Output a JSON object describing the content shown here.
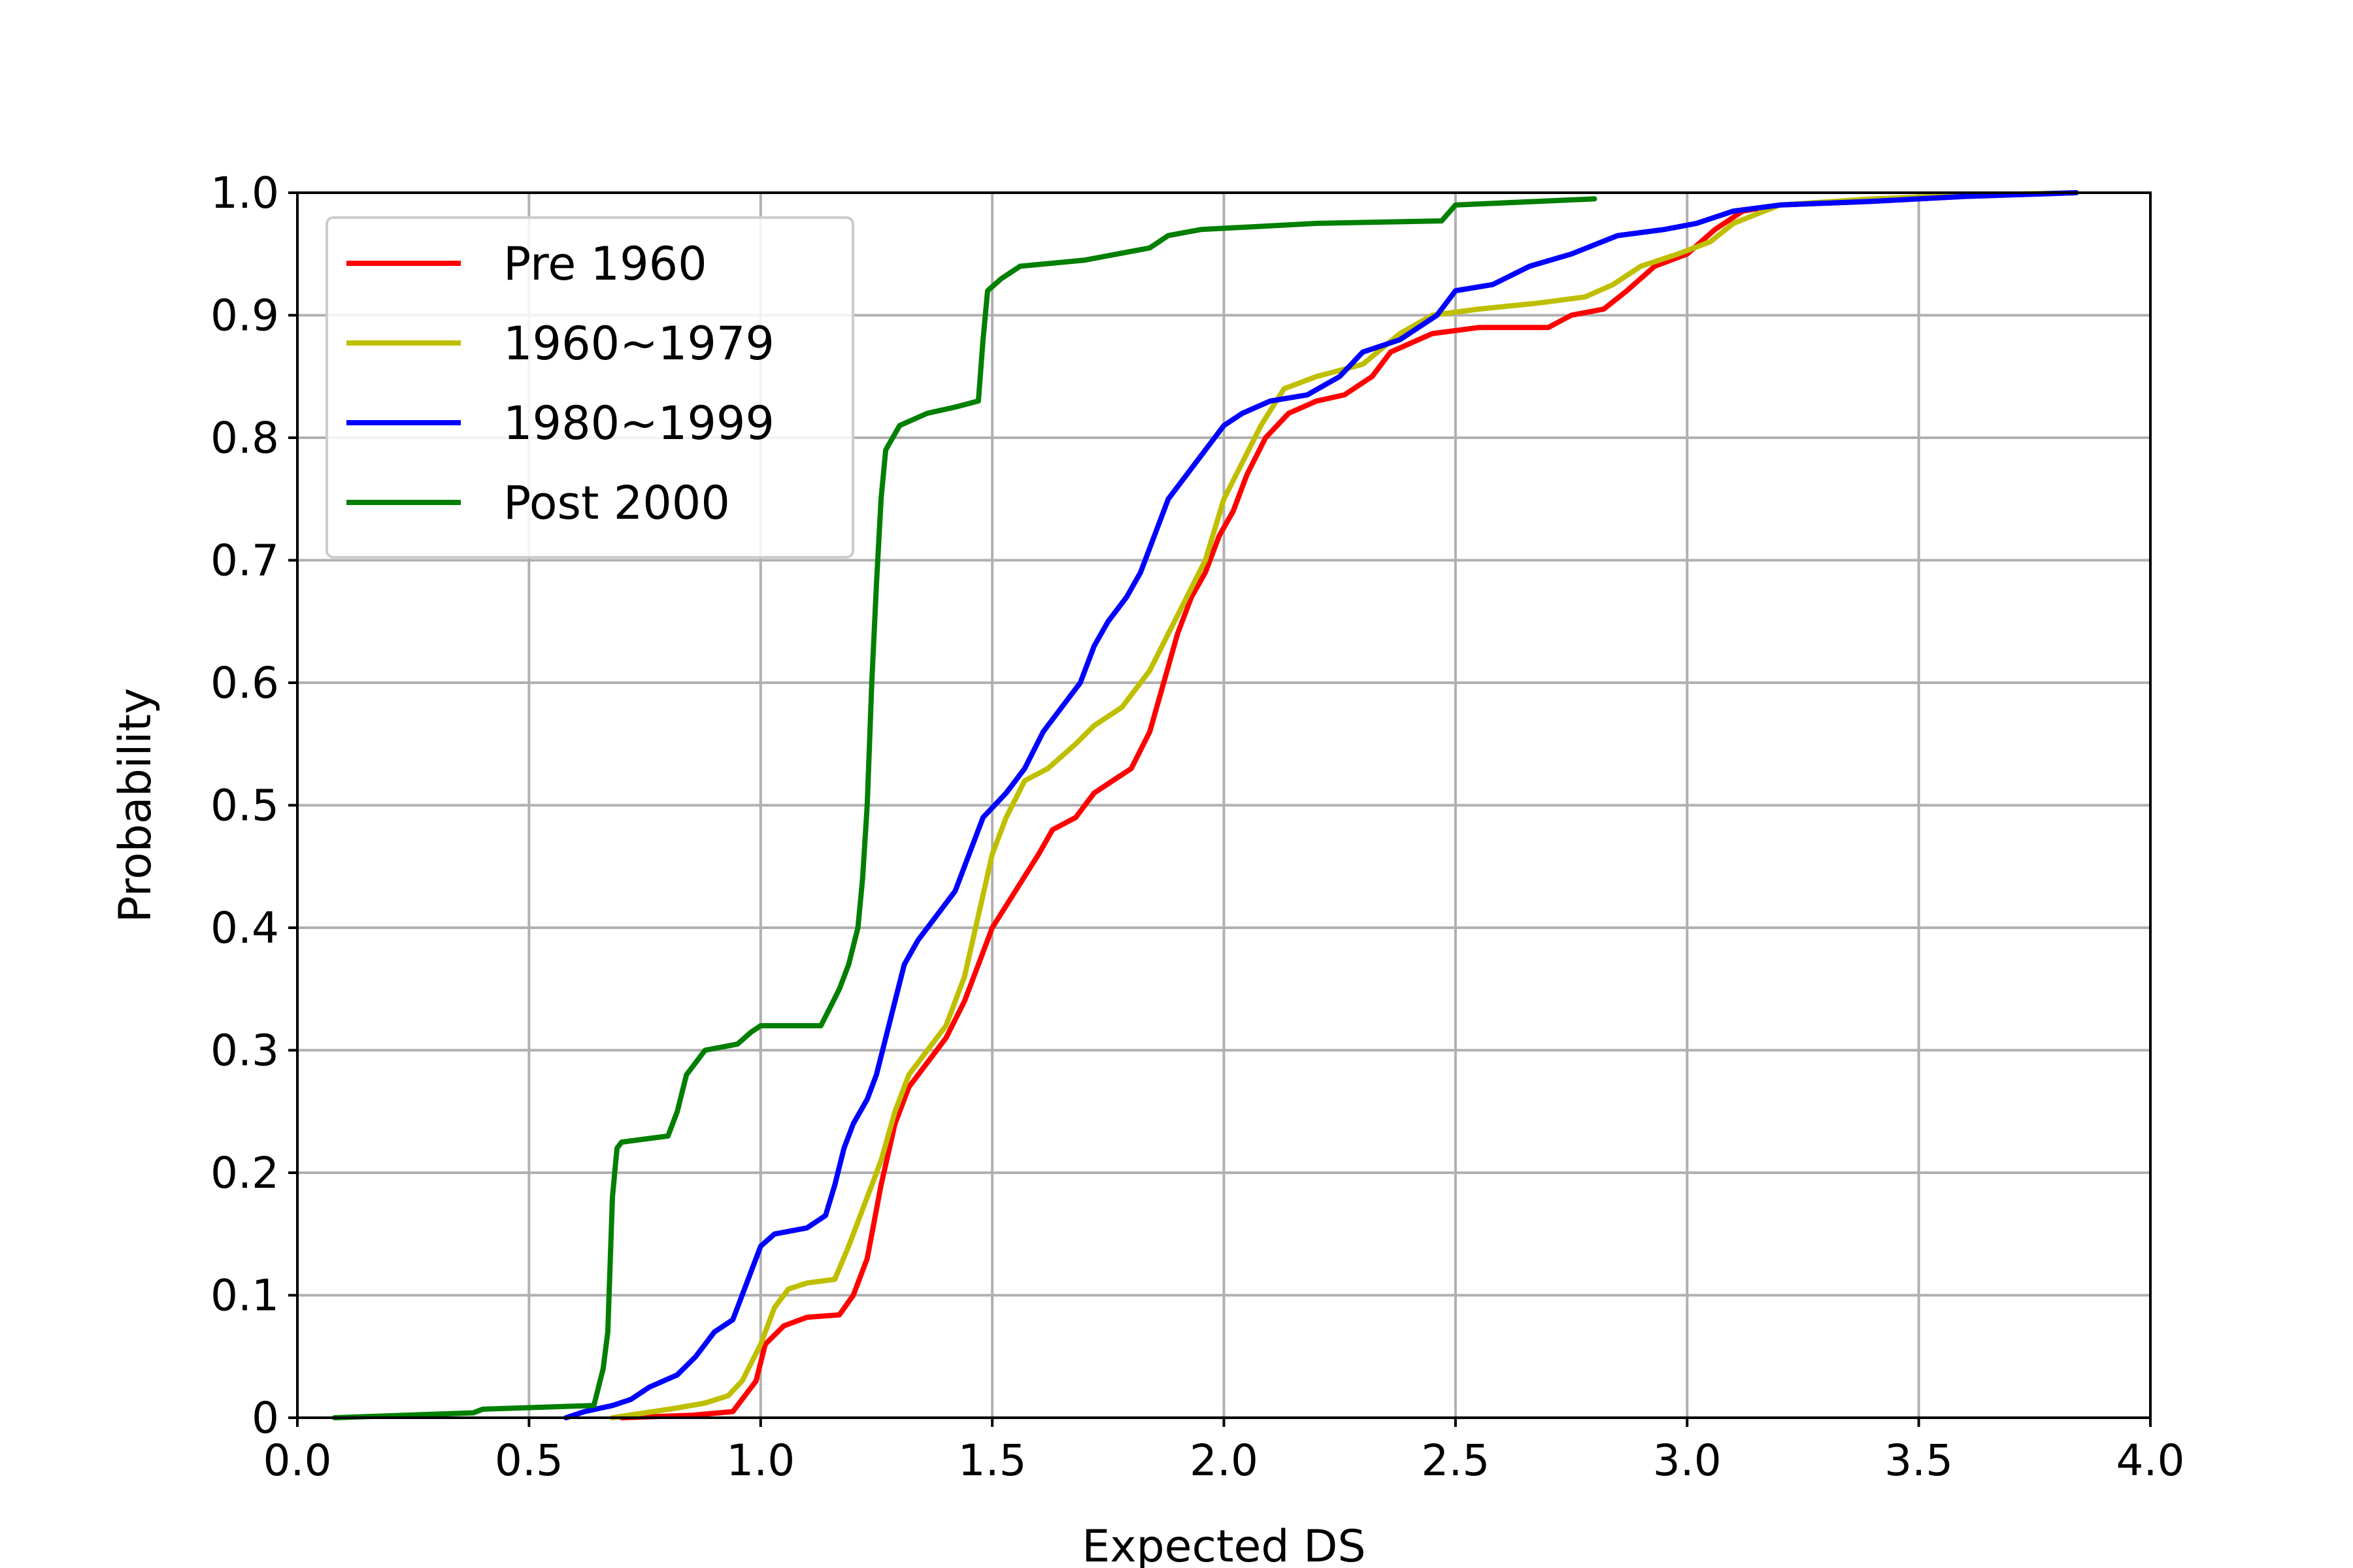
{
  "chart_data": {
    "type": "line",
    "xlabel": "Expected DS",
    "ylabel": "Probability",
    "xlim": [
      0.0,
      4.0
    ],
    "ylim": [
      0.0,
      1.0
    ],
    "x_ticks": [
      "0.0",
      "0.5",
      "1.0",
      "1.5",
      "2.0",
      "2.5",
      "3.0",
      "3.5",
      "4.0"
    ],
    "y_ticks": [
      "0",
      "0.1",
      "0.2",
      "0.3",
      "0.4",
      "0.5",
      "0.6",
      "0.7",
      "0.8",
      "0.9",
      "1.0"
    ],
    "grid": true,
    "legend_position": "top-left",
    "series": [
      {
        "name": "Pre 1960",
        "color": "#ff0000",
        "points": [
          [
            0.7,
            0.0
          ],
          [
            0.85,
            0.002
          ],
          [
            0.94,
            0.005
          ],
          [
            0.97,
            0.02
          ],
          [
            0.99,
            0.03
          ],
          [
            1.01,
            0.06
          ],
          [
            1.05,
            0.075
          ],
          [
            1.1,
            0.082
          ],
          [
            1.17,
            0.084
          ],
          [
            1.2,
            0.1
          ],
          [
            1.23,
            0.13
          ],
          [
            1.26,
            0.19
          ],
          [
            1.29,
            0.24
          ],
          [
            1.32,
            0.27
          ],
          [
            1.36,
            0.29
          ],
          [
            1.4,
            0.31
          ],
          [
            1.44,
            0.34
          ],
          [
            1.47,
            0.37
          ],
          [
            1.5,
            0.4
          ],
          [
            1.55,
            0.43
          ],
          [
            1.6,
            0.46
          ],
          [
            1.63,
            0.48
          ],
          [
            1.68,
            0.49
          ],
          [
            1.72,
            0.51
          ],
          [
            1.76,
            0.52
          ],
          [
            1.8,
            0.53
          ],
          [
            1.84,
            0.56
          ],
          [
            1.87,
            0.6
          ],
          [
            1.9,
            0.64
          ],
          [
            1.93,
            0.67
          ],
          [
            1.96,
            0.69
          ],
          [
            1.99,
            0.72
          ],
          [
            2.02,
            0.74
          ],
          [
            2.05,
            0.77
          ],
          [
            2.09,
            0.8
          ],
          [
            2.14,
            0.82
          ],
          [
            2.2,
            0.83
          ],
          [
            2.26,
            0.835
          ],
          [
            2.32,
            0.85
          ],
          [
            2.36,
            0.87
          ],
          [
            2.45,
            0.885
          ],
          [
            2.55,
            0.89
          ],
          [
            2.7,
            0.89
          ],
          [
            2.75,
            0.9
          ],
          [
            2.82,
            0.905
          ],
          [
            2.87,
            0.92
          ],
          [
            2.93,
            0.94
          ],
          [
            3.0,
            0.95
          ],
          [
            3.06,
            0.97
          ],
          [
            3.12,
            0.985
          ],
          [
            3.2,
            0.99
          ],
          [
            3.4,
            0.993
          ],
          [
            3.6,
            0.997
          ],
          [
            3.84,
            1.0
          ]
        ]
      },
      {
        "name": "1960~1979",
        "color": "#bfbf00",
        "points": [
          [
            0.68,
            0.0
          ],
          [
            0.75,
            0.004
          ],
          [
            0.82,
            0.008
          ],
          [
            0.88,
            0.012
          ],
          [
            0.93,
            0.018
          ],
          [
            0.96,
            0.03
          ],
          [
            1.0,
            0.06
          ],
          [
            1.03,
            0.09
          ],
          [
            1.06,
            0.105
          ],
          [
            1.1,
            0.11
          ],
          [
            1.16,
            0.113
          ],
          [
            1.19,
            0.14
          ],
          [
            1.22,
            0.17
          ],
          [
            1.26,
            0.21
          ],
          [
            1.29,
            0.25
          ],
          [
            1.32,
            0.28
          ],
          [
            1.36,
            0.3
          ],
          [
            1.4,
            0.32
          ],
          [
            1.44,
            0.36
          ],
          [
            1.47,
            0.41
          ],
          [
            1.5,
            0.46
          ],
          [
            1.53,
            0.49
          ],
          [
            1.57,
            0.52
          ],
          [
            1.62,
            0.53
          ],
          [
            1.68,
            0.55
          ],
          [
            1.72,
            0.565
          ],
          [
            1.78,
            0.58
          ],
          [
            1.84,
            0.61
          ],
          [
            1.88,
            0.64
          ],
          [
            1.92,
            0.67
          ],
          [
            1.96,
            0.7
          ],
          [
            2.0,
            0.75
          ],
          [
            2.04,
            0.78
          ],
          [
            2.08,
            0.81
          ],
          [
            2.13,
            0.84
          ],
          [
            2.2,
            0.85
          ],
          [
            2.3,
            0.86
          ],
          [
            2.38,
            0.885
          ],
          [
            2.45,
            0.9
          ],
          [
            2.55,
            0.905
          ],
          [
            2.68,
            0.91
          ],
          [
            2.78,
            0.915
          ],
          [
            2.84,
            0.925
          ],
          [
            2.9,
            0.94
          ],
          [
            2.98,
            0.95
          ],
          [
            3.05,
            0.96
          ],
          [
            3.1,
            0.975
          ],
          [
            3.2,
            0.99
          ],
          [
            3.4,
            0.995
          ],
          [
            3.6,
            0.998
          ],
          [
            3.84,
            1.0
          ]
        ]
      },
      {
        "name": "1980~1999",
        "color": "#0000ff",
        "points": [
          [
            0.58,
            0.0
          ],
          [
            0.62,
            0.005
          ],
          [
            0.68,
            0.01
          ],
          [
            0.72,
            0.015
          ],
          [
            0.76,
            0.025
          ],
          [
            0.82,
            0.035
          ],
          [
            0.86,
            0.05
          ],
          [
            0.9,
            0.07
          ],
          [
            0.94,
            0.08
          ],
          [
            0.97,
            0.11
          ],
          [
            1.0,
            0.14
          ],
          [
            1.03,
            0.15
          ],
          [
            1.1,
            0.155
          ],
          [
            1.14,
            0.165
          ],
          [
            1.16,
            0.19
          ],
          [
            1.18,
            0.22
          ],
          [
            1.2,
            0.24
          ],
          [
            1.23,
            0.26
          ],
          [
            1.25,
            0.28
          ],
          [
            1.27,
            0.31
          ],
          [
            1.29,
            0.34
          ],
          [
            1.31,
            0.37
          ],
          [
            1.34,
            0.39
          ],
          [
            1.38,
            0.41
          ],
          [
            1.42,
            0.43
          ],
          [
            1.45,
            0.46
          ],
          [
            1.48,
            0.49
          ],
          [
            1.53,
            0.51
          ],
          [
            1.57,
            0.53
          ],
          [
            1.61,
            0.56
          ],
          [
            1.65,
            0.58
          ],
          [
            1.69,
            0.6
          ],
          [
            1.72,
            0.63
          ],
          [
            1.75,
            0.65
          ],
          [
            1.79,
            0.67
          ],
          [
            1.82,
            0.69
          ],
          [
            1.85,
            0.72
          ],
          [
            1.88,
            0.75
          ],
          [
            1.92,
            0.77
          ],
          [
            1.96,
            0.79
          ],
          [
            2.0,
            0.81
          ],
          [
            2.04,
            0.82
          ],
          [
            2.1,
            0.83
          ],
          [
            2.18,
            0.835
          ],
          [
            2.25,
            0.85
          ],
          [
            2.3,
            0.87
          ],
          [
            2.38,
            0.88
          ],
          [
            2.46,
            0.9
          ],
          [
            2.5,
            0.92
          ],
          [
            2.58,
            0.925
          ],
          [
            2.66,
            0.94
          ],
          [
            2.75,
            0.95
          ],
          [
            2.85,
            0.965
          ],
          [
            2.95,
            0.97
          ],
          [
            3.02,
            0.975
          ],
          [
            3.1,
            0.985
          ],
          [
            3.2,
            0.99
          ],
          [
            3.4,
            0.993
          ],
          [
            3.6,
            0.997
          ],
          [
            3.84,
            1.0
          ]
        ]
      },
      {
        "name": "Post 2000",
        "color": "#007f00",
        "points": [
          [
            0.08,
            0.0
          ],
          [
            0.38,
            0.004
          ],
          [
            0.4,
            0.007
          ],
          [
            0.64,
            0.01
          ],
          [
            0.66,
            0.04
          ],
          [
            0.67,
            0.07
          ],
          [
            0.68,
            0.18
          ],
          [
            0.69,
            0.22
          ],
          [
            0.7,
            0.225
          ],
          [
            0.8,
            0.23
          ],
          [
            0.82,
            0.25
          ],
          [
            0.84,
            0.28
          ],
          [
            0.86,
            0.29
          ],
          [
            0.88,
            0.3
          ],
          [
            0.95,
            0.305
          ],
          [
            0.98,
            0.315
          ],
          [
            1.0,
            0.32
          ],
          [
            1.13,
            0.32
          ],
          [
            1.15,
            0.335
          ],
          [
            1.17,
            0.35
          ],
          [
            1.19,
            0.37
          ],
          [
            1.21,
            0.4
          ],
          [
            1.22,
            0.44
          ],
          [
            1.23,
            0.5
          ],
          [
            1.24,
            0.6
          ],
          [
            1.25,
            0.68
          ],
          [
            1.26,
            0.75
          ],
          [
            1.27,
            0.79
          ],
          [
            1.3,
            0.81
          ],
          [
            1.36,
            0.82
          ],
          [
            1.42,
            0.825
          ],
          [
            1.47,
            0.83
          ],
          [
            1.48,
            0.88
          ],
          [
            1.49,
            0.92
          ],
          [
            1.52,
            0.93
          ],
          [
            1.56,
            0.94
          ],
          [
            1.7,
            0.945
          ],
          [
            1.84,
            0.955
          ],
          [
            1.88,
            0.965
          ],
          [
            1.95,
            0.97
          ],
          [
            2.2,
            0.975
          ],
          [
            2.47,
            0.977
          ],
          [
            2.5,
            0.99
          ],
          [
            2.8,
            0.995
          ]
        ]
      }
    ]
  }
}
